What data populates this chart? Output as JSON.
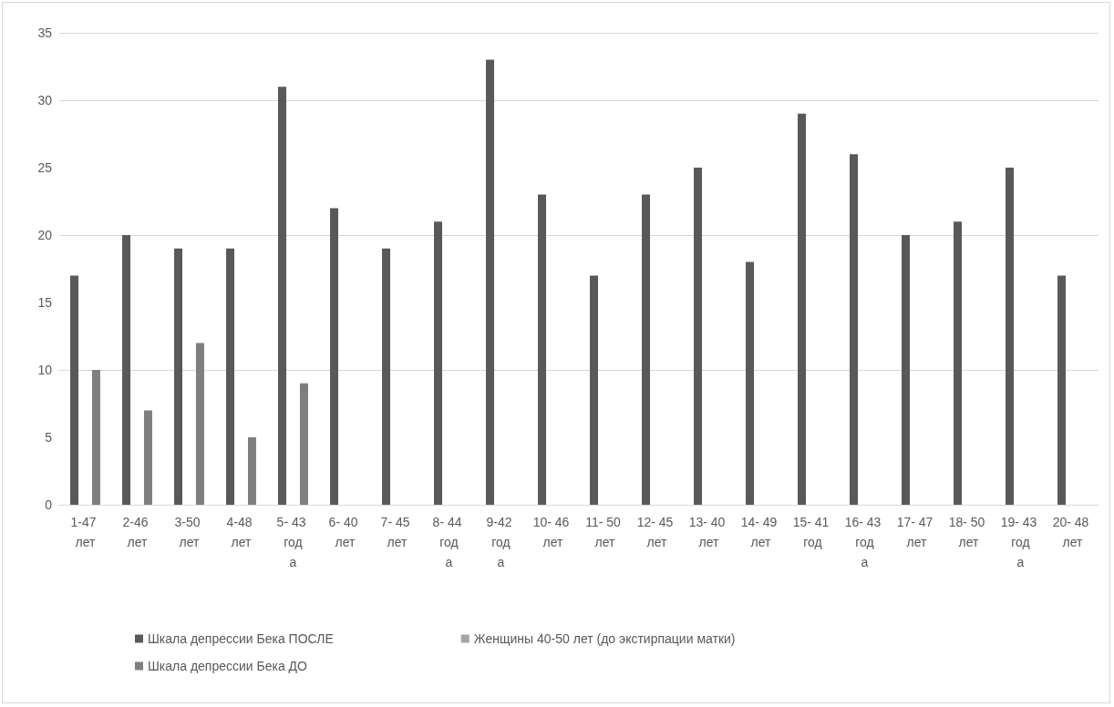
{
  "chart_data": {
    "type": "bar",
    "categories": [
      "1-47 лет",
      "2-46 лет",
      "3-50 лет",
      "4-48 лет",
      "5- 43 года",
      "6- 40 лет",
      "7- 45 лет",
      "8- 44 года",
      "9-42 года",
      "10- 46 лет",
      "11- 50 лет",
      "12- 45 лет",
      "13- 40 лет",
      "14- 49 лет",
      "15- 41 год",
      "16- 43 года",
      "17- 47 лет",
      "18- 50 лет",
      "19- 43 года",
      "20- 48 лет"
    ],
    "series": [
      {
        "name": "Шкала депрессии Бека ПОСЛЕ",
        "color": "#595959",
        "values": [
          17,
          20,
          19,
          19,
          31,
          22,
          19,
          21,
          33,
          23,
          17,
          23,
          25,
          18,
          29,
          26,
          20,
          21,
          25,
          17
        ]
      },
      {
        "name": "Женщины 40-50 лет (до экстирпации матки)",
        "color": "#a5a5a5",
        "values": [
          null,
          null,
          null,
          null,
          null,
          null,
          null,
          null,
          null,
          null,
          null,
          null,
          null,
          null,
          null,
          null,
          null,
          null,
          null,
          null
        ]
      },
      {
        "name": "Шкала депрессии Бека ДО",
        "color": "#7f7f7f",
        "values": [
          10,
          7,
          12,
          5,
          9,
          null,
          null,
          null,
          null,
          null,
          null,
          null,
          null,
          null,
          null,
          null,
          null,
          null,
          null,
          null
        ]
      }
    ],
    "ylim": [
      0,
      35
    ],
    "yticks": [
      0,
      5,
      10,
      15,
      20,
      25,
      30,
      35
    ],
    "grid": "y",
    "legend": "bottom"
  }
}
